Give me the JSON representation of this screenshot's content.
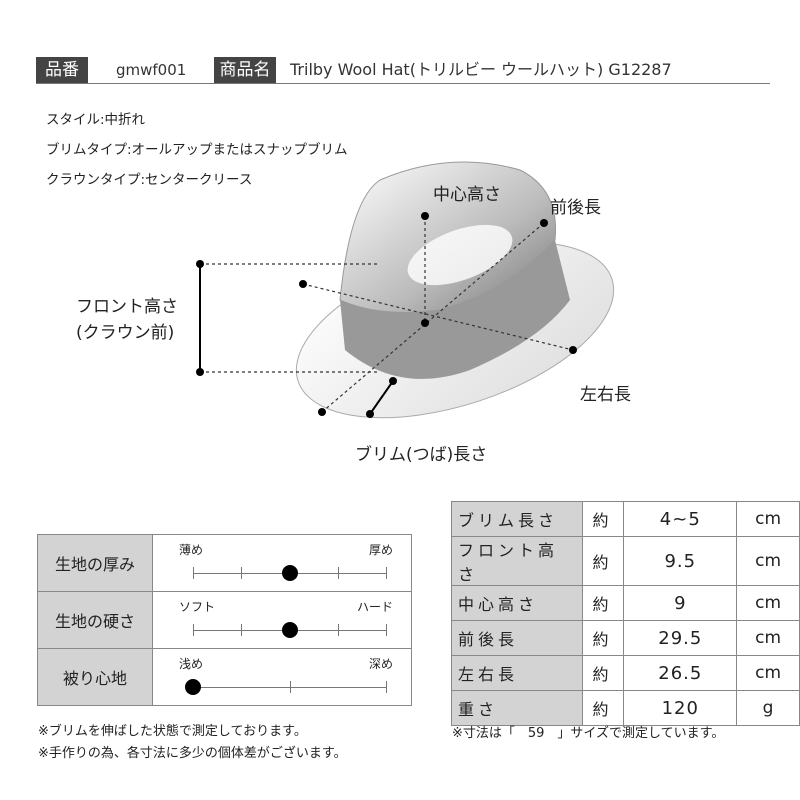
{
  "header": {
    "code_label": "品番",
    "code": "gmwf001",
    "name_label": "商品名",
    "name": "Trilby Wool Hat(トリルビー ウールハット) G12287"
  },
  "specs": [
    "スタイル:中折れ",
    "ブリムタイプ:オールアップまたはスナップブリム",
    "クラウンタイプ:センタークリース"
  ],
  "diagram": {
    "center_height": "中心高さ",
    "front_back": "前後長",
    "front_height_1": "フロント高さ",
    "front_height_2": "(クラウン前)",
    "left_right": "左右長",
    "brim": "ブリム(つば)長さ"
  },
  "colors": {
    "label_bg": "#444444",
    "cell_bg": "#d3d3d3"
  },
  "feel": [
    {
      "label": "生地の厚み",
      "left": "薄め",
      "right": "厚め",
      "ticks": 5,
      "value": 0.5
    },
    {
      "label": "生地の硬さ",
      "left": "ソフト",
      "right": "ハード",
      "ticks": 5,
      "value": 0.5
    },
    {
      "label": "被り心地",
      "left": "浅め",
      "right": "深め",
      "ticks": 3,
      "value": 0
    }
  ],
  "sizes": [
    {
      "label": "ブリム長さ",
      "approx": "約",
      "value": "4~5",
      "unit": "cm"
    },
    {
      "label": "フロント高さ",
      "approx": "約",
      "value": "9.5",
      "unit": "cm"
    },
    {
      "label": "中心高さ",
      "approx": "約",
      "value": "9",
      "unit": "cm"
    },
    {
      "label": "前後長",
      "approx": "約",
      "value": "29.5",
      "unit": "cm"
    },
    {
      "label": "左右長",
      "approx": "約",
      "value": "26.5",
      "unit": "cm"
    },
    {
      "label": "重さ",
      "approx": "約",
      "value": "120",
      "unit": "g"
    }
  ],
  "notes": {
    "left1": "※ブリムを伸ばした状態で測定しております。",
    "left2": "※手作りの為、各寸法に多少の個体差がございます。",
    "right": "※寸法は「　59　」サイズで測定しています。"
  }
}
